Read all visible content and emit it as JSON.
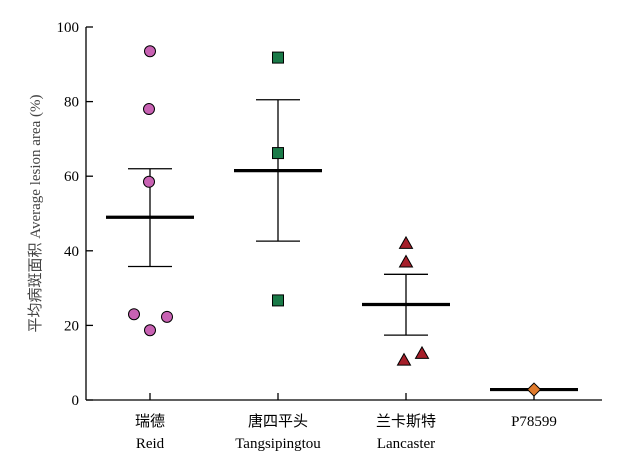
{
  "chart_data": {
    "type": "scatter",
    "ylabel": "平均病斑面积 Average lesion area (%)",
    "ylim": [
      0,
      100
    ],
    "yticks": [
      "0",
      "20",
      "40",
      "60",
      "80",
      "100"
    ],
    "grid": false,
    "categories": [
      {
        "label_cn": "瑞德",
        "label_en": "Reid"
      },
      {
        "label_cn": "唐四平头",
        "label_en": "Tangsipingtou"
      },
      {
        "label_cn": "兰卡斯特",
        "label_en": "Lancaster"
      },
      {
        "label_cn": "",
        "label_en": "P78599"
      }
    ],
    "series": [
      {
        "marker": "circle",
        "color": "#c862b3",
        "points": [
          93.5,
          78.0,
          58.5,
          23.0,
          22.3,
          18.7
        ],
        "mean": 49.0,
        "err_high": 62.0,
        "err_low": 35.8
      },
      {
        "marker": "square",
        "color": "#1a7a48",
        "points": [
          91.8,
          66.2,
          26.7
        ],
        "mean": 61.5,
        "err_high": 80.5,
        "err_low": 42.6
      },
      {
        "marker": "triangle",
        "color": "#a51f2a",
        "points": [
          42.0,
          37.0,
          12.5,
          10.7
        ],
        "mean": 25.6,
        "err_high": 33.7,
        "err_low": 17.4
      },
      {
        "marker": "diamond",
        "color": "#e07a2c",
        "points": [
          2.8
        ],
        "mean": 2.8,
        "err_high": 2.8,
        "err_low": 2.8
      }
    ]
  }
}
